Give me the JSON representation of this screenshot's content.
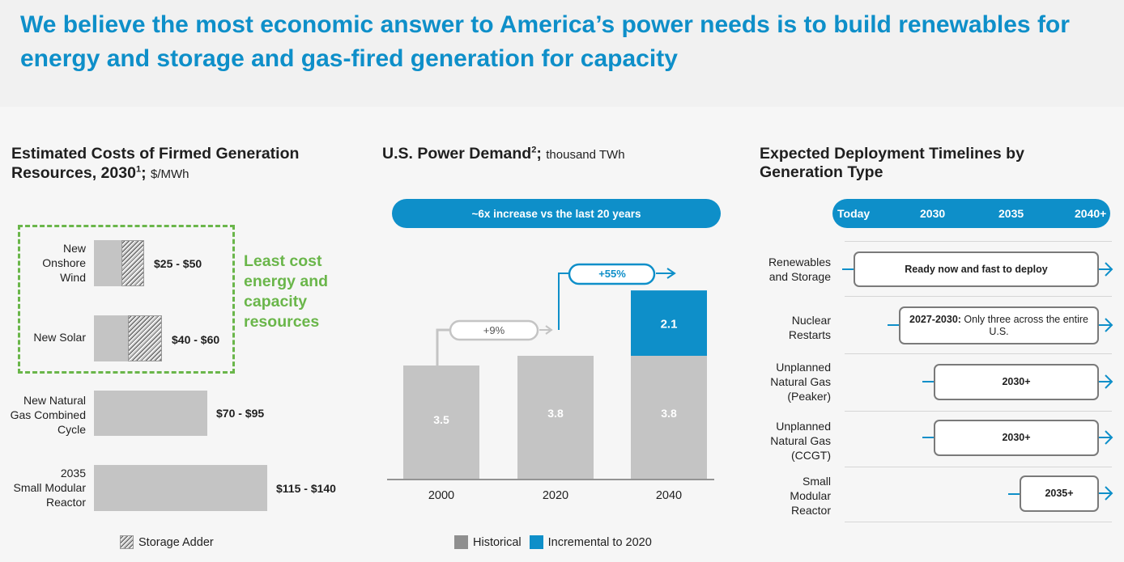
{
  "headline": "We believe the most economic answer to America’s power needs is to build renewables for energy and storage and gas-fired generation for capacity",
  "colors": {
    "accent": "#0e8fc9",
    "green": "#6ab64a",
    "bar": "#c4c4c4"
  },
  "panel1": {
    "title_a": "Estimated Costs of Firmed Generation",
    "title_b": "Resources, 2030",
    "title_sup": "1",
    "title_semicolon": ";",
    "unit": "$/MWh",
    "callout": [
      "Least cost",
      "energy and",
      "capacity",
      "resources"
    ],
    "legend": "Storage Adder",
    "categories": [
      {
        "label": [
          "New",
          "Onshore",
          "Wind"
        ],
        "value": "$25 - $50"
      },
      {
        "label": [
          "New Solar"
        ],
        "value": "$40 - $60"
      },
      {
        "label": [
          "New Natural",
          "Gas Combined",
          "Cycle"
        ],
        "value": "$70 - $95"
      },
      {
        "label": [
          "2035",
          "Small Modular",
          "Reactor"
        ],
        "value": "$115 - $140"
      }
    ]
  },
  "chart_data": [
    {
      "type": "bar",
      "title": "Estimated Costs of Firmed Generation Resources, 2030; $/MWh",
      "categories": [
        "New Onshore Wind",
        "New Solar",
        "New Natural Gas Combined Cycle",
        "2035 Small Modular Reactor"
      ],
      "series": [
        {
          "name": "Storage Adder",
          "values": [
            true,
            true,
            false,
            false
          ]
        }
      ],
      "ranges": [
        [
          25,
          50
        ],
        [
          40,
          60
        ],
        [
          70,
          95
        ],
        [
          115,
          140
        ]
      ]
    },
    {
      "type": "bar",
      "title": "U.S. Power Demand; thousand TWh",
      "categories": [
        "2000",
        "2020",
        "2040"
      ],
      "series": [
        {
          "name": "Historical",
          "values": [
            3.5,
            3.8,
            3.8
          ]
        },
        {
          "name": "Incremental to 2020",
          "values": [
            0,
            0,
            2.1
          ]
        }
      ],
      "ylim": [
        0,
        6.2
      ],
      "annotations": [
        "+9%",
        "+55%",
        "~6x increase vs the last 20 years"
      ]
    }
  ],
  "panel2": {
    "title": "U.S. Power Demand",
    "title_sup": "2",
    "title_semicolon": ";",
    "unit": "thousand TWh",
    "pill": "~6x increase vs the last 20 years",
    "growth1": "+9%",
    "growth2": "+55%",
    "legend_hist": "Historical",
    "legend_inc": "Incremental to 2020"
  },
  "panel3": {
    "title_a": "Expected Deployment Timelines by",
    "title_b": "Generation Type",
    "timeline": [
      "Today",
      "2030",
      "2035",
      "2040+"
    ],
    "rows": [
      {
        "label": [
          "Renewables",
          "and Storage"
        ],
        "text_bold": "Ready now and fast to deploy",
        "text": ""
      },
      {
        "label": [
          "Nuclear",
          "Restarts"
        ],
        "text_bold": "2027-2030:",
        "text": " Only three across the entire U.S."
      },
      {
        "label": [
          "Unplanned",
          "Natural Gas",
          "(Peaker)"
        ],
        "text_bold": "2030+",
        "text": ""
      },
      {
        "label": [
          "Unplanned",
          "Natural Gas",
          "(CCGT)"
        ],
        "text_bold": "2030+",
        "text": ""
      },
      {
        "label": [
          "Small",
          "Modular",
          "Reactor"
        ],
        "text_bold": "2035+",
        "text": ""
      }
    ]
  }
}
